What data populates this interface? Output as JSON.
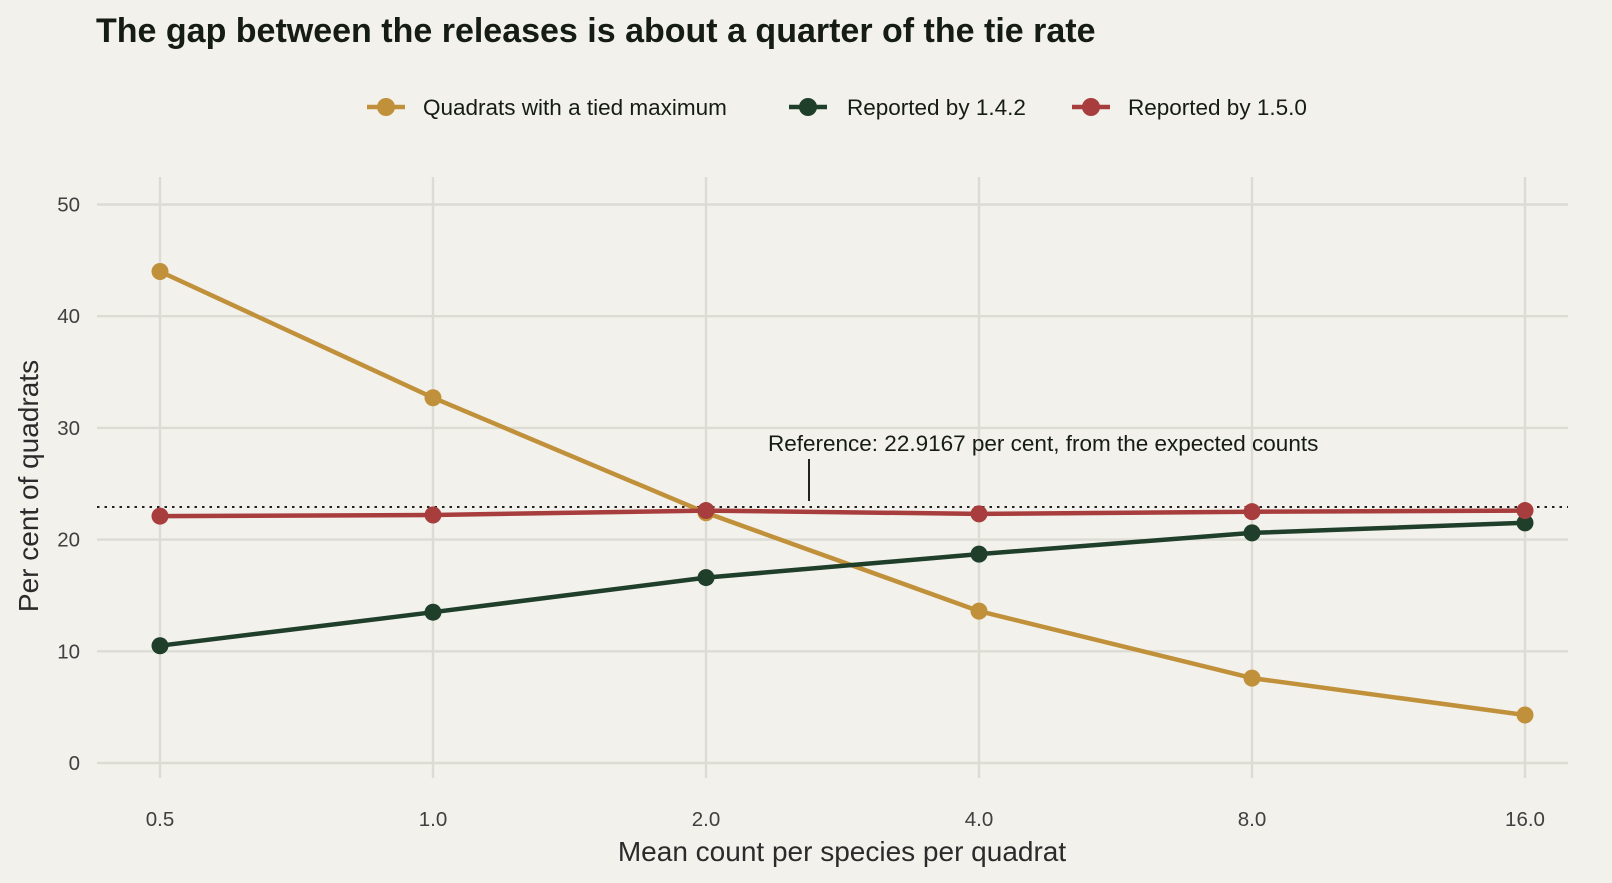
{
  "chart_data": {
    "type": "line",
    "title": "The gap between the releases is about a quarter of the tie rate",
    "xlabel": "Mean count per species per quadrat",
    "ylabel": "Per cent of quadrats",
    "x_scale": "log2",
    "x": [
      0.5,
      1.0,
      2.0,
      4.0,
      8.0,
      16.0
    ],
    "x_tick_labels": [
      "0.5",
      "1.0",
      "2.0",
      "4.0",
      "8.0",
      "16.0"
    ],
    "ylim": [
      0,
      50
    ],
    "y_ticks": [
      0,
      10,
      20,
      30,
      40,
      50
    ],
    "y_tick_labels": [
      "0",
      "10",
      "20",
      "30",
      "40",
      "50"
    ],
    "grid": true,
    "legend_position": "top",
    "series": [
      {
        "name": "Quadrats with a tied maximum",
        "color": "#c0913a",
        "values": [
          44.0,
          32.7,
          22.4,
          13.6,
          7.6,
          4.3
        ]
      },
      {
        "name": "Reported by 1.4.2",
        "color": "#1f3f2b",
        "values": [
          10.5,
          13.5,
          16.6,
          18.7,
          20.6,
          21.5
        ]
      },
      {
        "name": "Reported by 1.5.0",
        "color": "#a83d3d",
        "values": [
          22.1,
          22.2,
          22.6,
          22.3,
          22.5,
          22.6
        ]
      }
    ],
    "reference_line": {
      "value": 22.9167,
      "label": "Reference: 22.9167 per cent, from the expected counts"
    }
  }
}
